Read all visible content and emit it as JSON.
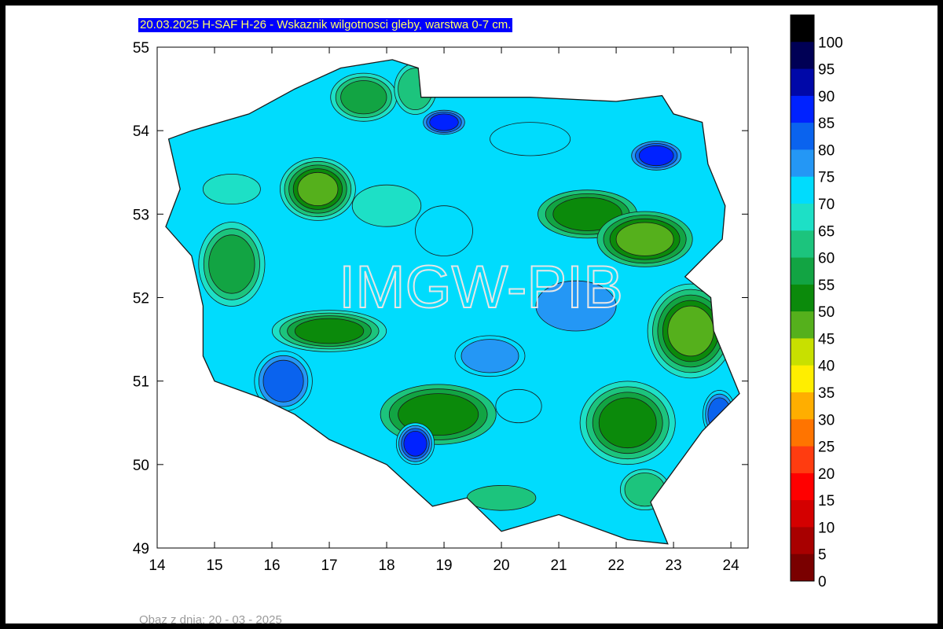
{
  "title": "20.03.2025 H-SAF H-26 - Wskaznik wilgotnosci gleby, warstwa 0-7 cm.",
  "footer_note": "Obaz z dnia: 20 - 03 - 2025",
  "watermark": "IMGW-PIB",
  "colors": {
    "title_bg": "#0000ff",
    "title_text": "#ffff66",
    "border_frame": "#000000",
    "map_outline": "#1a1a1a"
  },
  "axes": {
    "x_ticks": [
      "14",
      "15",
      "16",
      "17",
      "18",
      "19",
      "20",
      "21",
      "22",
      "23",
      "24"
    ],
    "y_ticks": [
      "49",
      "50",
      "51",
      "52",
      "53",
      "54",
      "55"
    ],
    "xlim": [
      14,
      24.3
    ],
    "ylim": [
      49,
      55
    ]
  },
  "legend": {
    "labels": [
      "100",
      "95",
      "90",
      "85",
      "80",
      "75",
      "70",
      "65",
      "60",
      "55",
      "50",
      "45",
      "40",
      "35",
      "30",
      "25",
      "20",
      "15",
      "10",
      "5",
      "0"
    ],
    "bands": [
      {
        "from": 95,
        "to": 100,
        "color": "#000000"
      },
      {
        "from": 90,
        "to": 95,
        "color": "#000055"
      },
      {
        "from": 85,
        "to": 90,
        "color": "#0008a8"
      },
      {
        "from": 80,
        "to": 85,
        "color": "#0022ff"
      },
      {
        "from": 75,
        "to": 80,
        "color": "#0a63ee"
      },
      {
        "from": 70,
        "to": 75,
        "color": "#2497f5"
      },
      {
        "from": 65,
        "to": 70,
        "color": "#00dcfd"
      },
      {
        "from": 60,
        "to": 65,
        "color": "#1de0c6"
      },
      {
        "from": 55,
        "to": 60,
        "color": "#1cc47d"
      },
      {
        "from": 50,
        "to": 55,
        "color": "#12a443"
      },
      {
        "from": 45,
        "to": 50,
        "color": "#0b8a0b"
      },
      {
        "from": 40,
        "to": 45,
        "color": "#55b01c"
      },
      {
        "from": 35,
        "to": 40,
        "color": "#c8e000"
      },
      {
        "from": 30,
        "to": 35,
        "color": "#ffee00"
      },
      {
        "from": 25,
        "to": 30,
        "color": "#ffae00"
      },
      {
        "from": 20,
        "to": 25,
        "color": "#ff7400"
      },
      {
        "from": 15,
        "to": 20,
        "color": "#ff3c10"
      },
      {
        "from": 10,
        "to": 15,
        "color": "#ff0000"
      },
      {
        "from": 5,
        "to": 10,
        "color": "#d40000"
      },
      {
        "from": 0,
        "to": 5,
        "color": "#a80000"
      },
      {
        "from": -5,
        "to": 0,
        "color": "#7a0000"
      }
    ]
  },
  "map": {
    "region": "Poland",
    "base_fill_value": 65,
    "outline": [
      [
        14.2,
        53.9
      ],
      [
        14.6,
        54.0
      ],
      [
        15.6,
        54.2
      ],
      [
        16.4,
        54.5
      ],
      [
        17.2,
        54.75
      ],
      [
        18.1,
        54.85
      ],
      [
        18.55,
        54.75
      ],
      [
        18.6,
        54.4
      ],
      [
        19.3,
        54.4
      ],
      [
        20.5,
        54.4
      ],
      [
        22.0,
        54.35
      ],
      [
        22.8,
        54.42
      ],
      [
        23.0,
        54.2
      ],
      [
        23.5,
        54.1
      ],
      [
        23.6,
        53.6
      ],
      [
        23.9,
        53.1
      ],
      [
        23.85,
        52.7
      ],
      [
        23.2,
        52.25
      ],
      [
        23.65,
        52.0
      ],
      [
        23.7,
        51.6
      ],
      [
        24.15,
        50.85
      ],
      [
        23.5,
        50.4
      ],
      [
        22.6,
        49.55
      ],
      [
        22.9,
        49.05
      ],
      [
        22.2,
        49.1
      ],
      [
        21.0,
        49.4
      ],
      [
        20.0,
        49.2
      ],
      [
        19.4,
        49.6
      ],
      [
        18.8,
        49.5
      ],
      [
        18.0,
        50.0
      ],
      [
        17.0,
        50.3
      ],
      [
        16.4,
        50.6
      ],
      [
        15.8,
        50.8
      ],
      [
        15.0,
        51.0
      ],
      [
        14.8,
        51.3
      ],
      [
        14.8,
        51.9
      ],
      [
        14.6,
        52.5
      ],
      [
        14.15,
        52.85
      ],
      [
        14.4,
        53.3
      ]
    ],
    "patches": [
      {
        "lon": 16.8,
        "lat": 53.3,
        "rx": 0.35,
        "ry": 0.2,
        "value": 42
      },
      {
        "lon": 17.6,
        "lat": 54.4,
        "rx": 0.4,
        "ry": 0.2,
        "value": 52
      },
      {
        "lon": 18.5,
        "lat": 54.5,
        "rx": 0.3,
        "ry": 0.25,
        "value": 55
      },
      {
        "lon": 19.0,
        "lat": 54.1,
        "rx": 0.25,
        "ry": 0.1,
        "value": 80
      },
      {
        "lon": 20.5,
        "lat": 53.9,
        "rx": 0.7,
        "ry": 0.2,
        "value": 68
      },
      {
        "lon": 22.7,
        "lat": 53.7,
        "rx": 0.3,
        "ry": 0.12,
        "value": 80
      },
      {
        "lon": 18.0,
        "lat": 53.1,
        "rx": 0.6,
        "ry": 0.25,
        "value": 62
      },
      {
        "lon": 19.0,
        "lat": 52.8,
        "rx": 0.5,
        "ry": 0.3,
        "value": 66
      },
      {
        "lon": 21.5,
        "lat": 53.0,
        "rx": 0.6,
        "ry": 0.2,
        "value": 48
      },
      {
        "lon": 22.5,
        "lat": 52.7,
        "rx": 0.5,
        "ry": 0.2,
        "value": 44
      },
      {
        "lon": 15.3,
        "lat": 52.4,
        "rx": 0.4,
        "ry": 0.35,
        "value": 52
      },
      {
        "lon": 23.3,
        "lat": 51.6,
        "rx": 0.4,
        "ry": 0.3,
        "value": 42
      },
      {
        "lon": 21.3,
        "lat": 51.9,
        "rx": 0.7,
        "ry": 0.3,
        "value": 70
      },
      {
        "lon": 17.0,
        "lat": 51.6,
        "rx": 0.6,
        "ry": 0.15,
        "value": 46
      },
      {
        "lon": 16.2,
        "lat": 51.0,
        "rx": 0.35,
        "ry": 0.25,
        "value": 78
      },
      {
        "lon": 18.9,
        "lat": 50.6,
        "rx": 0.7,
        "ry": 0.25,
        "value": 48
      },
      {
        "lon": 18.5,
        "lat": 50.25,
        "rx": 0.2,
        "ry": 0.15,
        "value": 84
      },
      {
        "lon": 22.2,
        "lat": 50.5,
        "rx": 0.5,
        "ry": 0.3,
        "value": 47
      },
      {
        "lon": 22.5,
        "lat": 49.7,
        "rx": 0.35,
        "ry": 0.2,
        "value": 55
      },
      {
        "lon": 20.0,
        "lat": 49.6,
        "rx": 0.6,
        "ry": 0.15,
        "value": 58
      },
      {
        "lon": 20.3,
        "lat": 50.7,
        "rx": 0.4,
        "ry": 0.2,
        "value": 67
      },
      {
        "lon": 23.8,
        "lat": 50.6,
        "rx": 0.2,
        "ry": 0.2,
        "value": 78
      },
      {
        "lon": 15.3,
        "lat": 53.3,
        "rx": 0.5,
        "ry": 0.18,
        "value": 60
      },
      {
        "lon": 19.8,
        "lat": 51.3,
        "rx": 0.5,
        "ry": 0.2,
        "value": 73
      }
    ]
  }
}
